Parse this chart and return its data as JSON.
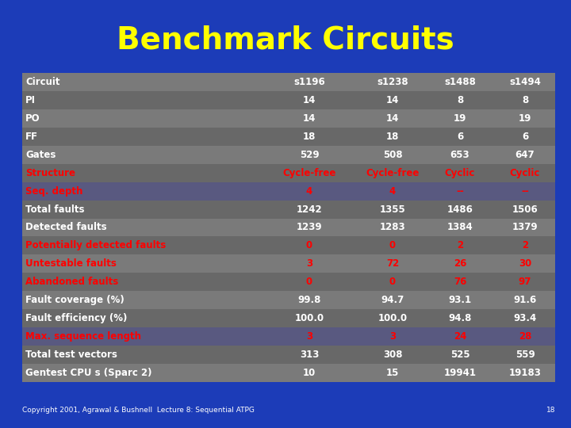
{
  "title": "Benchmark Circuits",
  "title_color": "#FFFF00",
  "title_fontsize": 28,
  "bg_color": "#1C3CB8",
  "white_text": "#FFFFFF",
  "red_text": "#FF0000",
  "copyright": "Copyright 2001, Agrawal & Bushnell  Lecture 8: Sequential ATPG",
  "page_num": "18",
  "rows": [
    {
      "label": "Circuit",
      "vals": [
        "s1196",
        "s1238",
        "s1488",
        "s1494"
      ],
      "color": "white"
    },
    {
      "label": "PI",
      "vals": [
        "14",
        "14",
        "8",
        "8"
      ],
      "color": "white"
    },
    {
      "label": "PO",
      "vals": [
        "14",
        "14",
        "19",
        "19"
      ],
      "color": "white"
    },
    {
      "label": "FF",
      "vals": [
        "18",
        "18",
        "6",
        "6"
      ],
      "color": "white"
    },
    {
      "label": "Gates",
      "vals": [
        "529",
        "508",
        "653",
        "647"
      ],
      "color": "white"
    },
    {
      "label": "Structure",
      "vals": [
        "Cycle-free",
        "Cycle-free",
        "Cyclic",
        "Cyclic"
      ],
      "color": "red"
    },
    {
      "label": "Seq. depth",
      "vals": [
        "4",
        "4",
        "--",
        "--"
      ],
      "color": "red"
    },
    {
      "label": "Total faults",
      "vals": [
        "1242",
        "1355",
        "1486",
        "1506"
      ],
      "color": "white"
    },
    {
      "label": "Detected faults",
      "vals": [
        "1239",
        "1283",
        "1384",
        "1379"
      ],
      "color": "white"
    },
    {
      "label": "Potentially detected faults",
      "vals": [
        "0",
        "0",
        "2",
        "2"
      ],
      "color": "red"
    },
    {
      "label": "Untestable faults",
      "vals": [
        "3",
        "72",
        "26",
        "30"
      ],
      "color": "red"
    },
    {
      "label": "Abandoned faults",
      "vals": [
        "0",
        "0",
        "76",
        "97"
      ],
      "color": "red"
    },
    {
      "label": "Fault coverage (%)",
      "vals": [
        "99.8",
        "94.7",
        "93.1",
        "91.6"
      ],
      "color": "white"
    },
    {
      "label": "Fault efficiency (%)",
      "vals": [
        "100.0",
        "100.0",
        "94.8",
        "93.4"
      ],
      "color": "white"
    },
    {
      "label": "Max. sequence length",
      "vals": [
        "3",
        "3",
        "24",
        "28"
      ],
      "color": "red"
    },
    {
      "label": "Total test vectors",
      "vals": [
        "313",
        "308",
        "525",
        "559"
      ],
      "color": "white"
    },
    {
      "label": "Gentest CPU s (Sparc 2)",
      "vals": [
        "10",
        "15",
        "19941",
        "19183"
      ],
      "color": "white"
    }
  ],
  "row_colors": [
    "#7A7A7A",
    "#696969",
    "#7A7A7A",
    "#696969",
    "#7A7A7A",
    "#696969",
    "#5A5A7A",
    "#7A7A7A",
    "#696969",
    "#696969",
    "#5A5A5A",
    "#696969",
    "#7A7A7A",
    "#696969",
    "#5A5A7A",
    "#7A7A7A",
    "#696969"
  ]
}
